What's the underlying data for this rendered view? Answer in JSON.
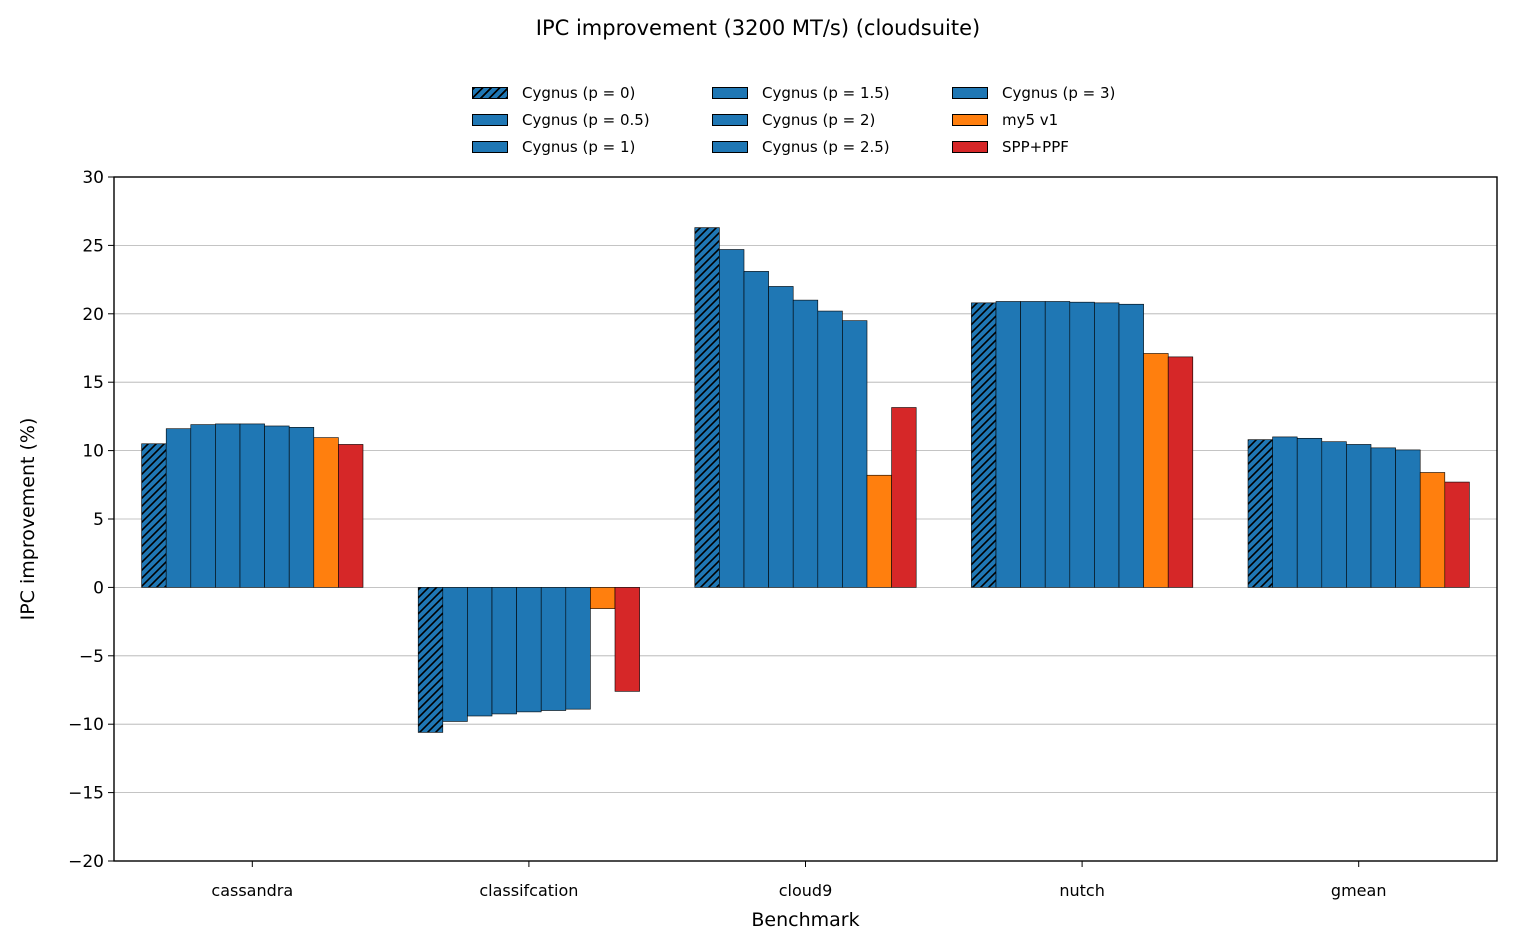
{
  "title": "IPC improvement (3200 MT/s) (cloudsuite)",
  "chart_data": {
    "type": "bar",
    "title": "IPC improvement (3200 MT/s) (cloudsuite)",
    "xlabel": "Benchmark",
    "ylabel": "IPC improvement (%)",
    "ylim": [
      -20,
      30
    ],
    "yticks": [
      -20,
      -15,
      -10,
      -5,
      0,
      5,
      10,
      15,
      20,
      25,
      30
    ],
    "grid": "horizontal",
    "legend_position": "top-center",
    "categories": [
      "cassandra",
      "classifcation",
      "cloud9",
      "nutch",
      "gmean"
    ],
    "series": [
      {
        "name": "Cygnus (p = 0)",
        "color": "#1f77b4",
        "hatch": true,
        "values": [
          10.5,
          -10.6,
          26.3,
          20.8,
          10.8
        ]
      },
      {
        "name": "Cygnus (p = 0.5)",
        "color": "#1f77b4",
        "values": [
          11.6,
          -9.8,
          24.7,
          20.9,
          11.0
        ]
      },
      {
        "name": "Cygnus (p = 1)",
        "color": "#1f77b4",
        "values": [
          11.9,
          -9.4,
          23.1,
          20.9,
          10.9
        ]
      },
      {
        "name": "Cygnus (p = 1.5)",
        "color": "#1f77b4",
        "values": [
          11.95,
          -9.25,
          22.0,
          20.9,
          10.65
        ]
      },
      {
        "name": "Cygnus (p = 2)",
        "color": "#1f77b4",
        "values": [
          11.95,
          -9.1,
          21.0,
          20.85,
          10.45
        ]
      },
      {
        "name": "Cygnus (p = 2.5)",
        "color": "#1f77b4",
        "values": [
          11.8,
          -9.0,
          20.2,
          20.8,
          10.2
        ]
      },
      {
        "name": "Cygnus (p = 3)",
        "color": "#1f77b4",
        "values": [
          11.7,
          -8.9,
          19.5,
          20.7,
          10.05
        ]
      },
      {
        "name": "my5 v1",
        "color": "#ff7f0e",
        "values": [
          10.95,
          -1.55,
          8.2,
          17.1,
          8.4
        ]
      },
      {
        "name": "SPP+PPF",
        "color": "#d62728",
        "values": [
          10.45,
          -7.6,
          13.15,
          16.85,
          7.7
        ]
      }
    ]
  }
}
